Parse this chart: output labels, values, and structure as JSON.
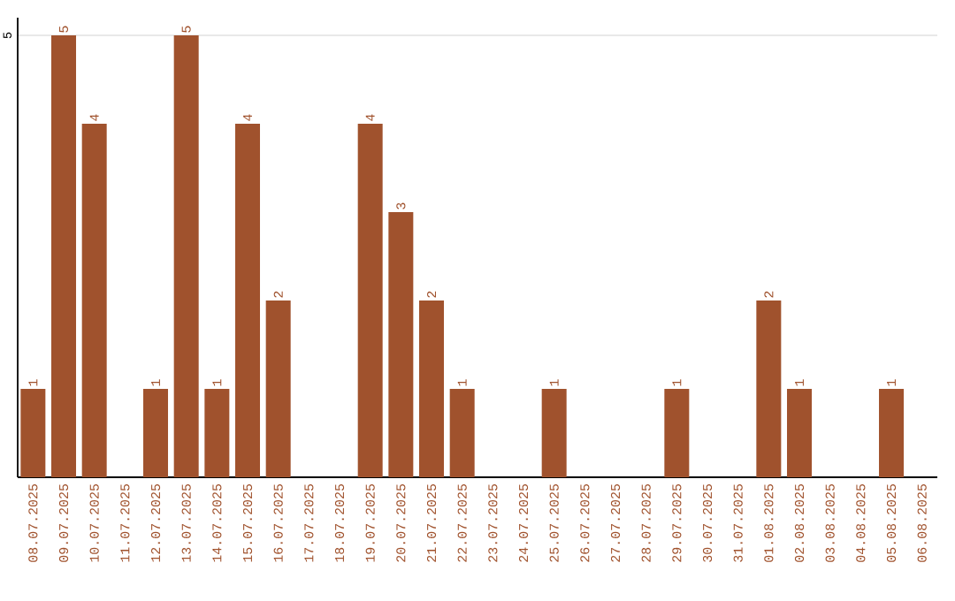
{
  "chart_data": {
    "type": "bar",
    "color": "#a0522d",
    "categories": [
      "08.07.2025",
      "09.07.2025",
      "10.07.2025",
      "11.07.2025",
      "12.07.2025",
      "13.07.2025",
      "14.07.2025",
      "15.07.2025",
      "16.07.2025",
      "17.07.2025",
      "18.07.2025",
      "19.07.2025",
      "20.07.2025",
      "21.07.2025",
      "22.07.2025",
      "23.07.2025",
      "24.07.2025",
      "25.07.2025",
      "26.07.2025",
      "27.07.2025",
      "28.07.2025",
      "29.07.2025",
      "30.07.2025",
      "31.07.2025",
      "01.08.2025",
      "02.08.2025",
      "03.08.2025",
      "04.08.2025",
      "05.08.2025",
      "06.08.2025"
    ],
    "values": [
      1,
      5,
      4,
      0,
      1,
      5,
      1,
      4,
      2,
      0,
      0,
      4,
      3,
      2,
      1,
      0,
      0,
      1,
      0,
      0,
      0,
      1,
      0,
      0,
      2,
      1,
      0,
      0,
      1,
      0
    ],
    "value_labels": [
      "1",
      "5",
      "4",
      null,
      "1",
      "5",
      "1",
      "4",
      "2",
      null,
      null,
      "4",
      "3",
      "2",
      "1",
      null,
      null,
      "1",
      null,
      null,
      null,
      "1",
      null,
      null,
      "2",
      "1",
      null,
      null,
      "1",
      null
    ],
    "ylim": [
      0,
      5.2
    ],
    "yticks": [
      5
    ],
    "grid": "y"
  }
}
